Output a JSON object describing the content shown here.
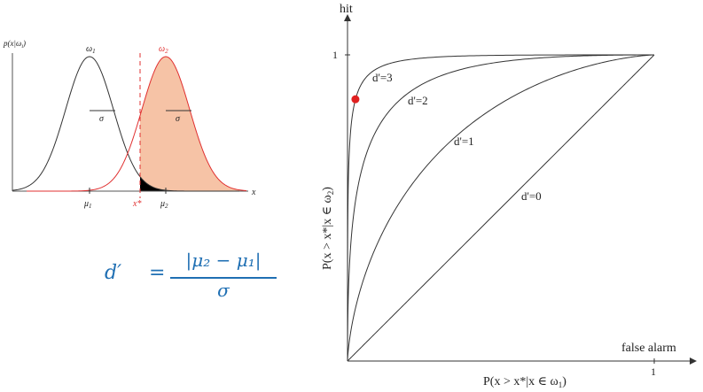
{
  "left_plot": {
    "y_axis_label": "p(x|ω",
    "y_axis_label_sub": "i",
    "y_axis_label_close": ")",
    "x_axis_label": "x",
    "class1_label": "ω",
    "class1_sub": "1",
    "class2_label": "ω",
    "class2_sub": "2",
    "sigma1_label": "σ",
    "sigma2_label": "σ",
    "mu1_label": "μ",
    "mu1_sub": "1",
    "mu2_label": "μ",
    "mu2_sub": "2",
    "threshold_label": "x*",
    "class1_color": "#333333",
    "class2_color": "#e03030",
    "shade_color": "#f6c3a6",
    "overlap_color": "#000000"
  },
  "formula": {
    "lhs": "d′",
    "eq": "=",
    "numerator": "|μ₂ − μ₁|",
    "denominator": "σ",
    "color": "#1f6fb3"
  },
  "chart_data": {
    "type": "line",
    "title": "",
    "ylabel_top": "hit",
    "xlabel_right": "false alarm",
    "ylabel": "P(x > x*|x ∈ ω",
    "ylabel_sub": "2",
    "ylabel_close": ")",
    "xlabel": "P(x > x*|x ∈ ω",
    "xlabel_sub": "1",
    "xlabel_close": ")",
    "x_tick": "1",
    "y_tick": "1",
    "xlim": [
      0,
      1
    ],
    "ylim": [
      0,
      1
    ],
    "series": [
      {
        "name": "d'=3",
        "dprime": 3
      },
      {
        "name": "d'=2",
        "dprime": 2
      },
      {
        "name": "d'=1",
        "dprime": 1
      },
      {
        "name": "d'=0",
        "dprime": 0
      }
    ],
    "marker": {
      "x": 0.02,
      "y": 0.855,
      "color": "#e02020"
    }
  }
}
